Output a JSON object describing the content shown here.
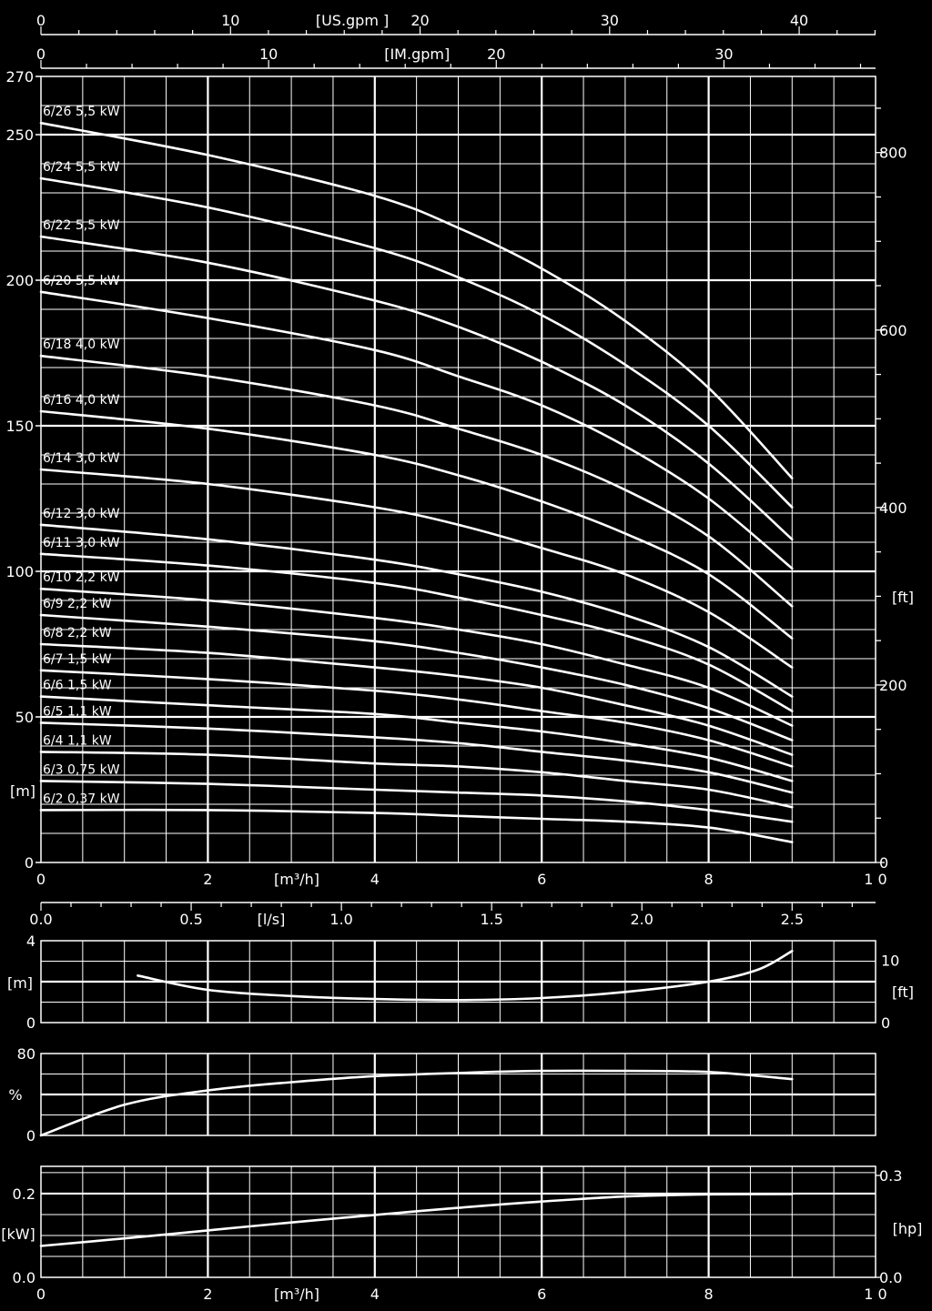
{
  "colors": {
    "background": "#000000",
    "foreground": "#ffffff"
  },
  "chart_data": {
    "type": "line",
    "top_axes": {
      "us_gpm": {
        "label": "[US.gpm ]",
        "ticks": [
          0,
          10,
          20,
          30,
          40
        ],
        "per_m3h": 4.403
      },
      "im_gpm": {
        "label": "[IM.gpm]",
        "ticks": [
          0,
          10,
          20,
          30
        ],
        "per_m3h": 3.666
      }
    },
    "head_chart": {
      "xlabel": "[m³/h]",
      "xticks": [
        0,
        2,
        4,
        6,
        8,
        10
      ],
      "xtick_labels": [
        "0",
        "2",
        "4",
        "6",
        "8",
        "1 0"
      ],
      "xlim": [
        0,
        10
      ],
      "ylabel": "[m]",
      "ylim": [
        0,
        270
      ],
      "yticks": [
        0,
        50,
        100,
        150,
        200,
        250,
        270
      ],
      "y2label": "[ft]",
      "y2ticks": [
        0,
        200,
        400,
        600,
        800
      ],
      "grid": true,
      "series": [
        {
          "name": "6/26 5,5 kW",
          "x": [
            0,
            2,
            4,
            5,
            6,
            7,
            8,
            9
          ],
          "y": [
            254,
            243,
            229,
            218,
            204,
            186,
            163,
            132
          ]
        },
        {
          "name": "6/24 5,5 kW",
          "x": [
            0,
            2,
            4,
            5,
            6,
            7,
            8,
            9
          ],
          "y": [
            235,
            225,
            211,
            201,
            188,
            171,
            150,
            122
          ]
        },
        {
          "name": "6/22 5,5 kW",
          "x": [
            0,
            2,
            4,
            5,
            6,
            7,
            8,
            9
          ],
          "y": [
            215,
            206,
            193,
            184,
            172,
            157,
            137,
            111
          ]
        },
        {
          "name": "6/20 5,5 kW",
          "x": [
            0,
            2,
            4,
            5,
            6,
            7,
            8,
            9
          ],
          "y": [
            196,
            187,
            176,
            167,
            157,
            143,
            125,
            101
          ]
        },
        {
          "name": "6/18 4,0 kW",
          "x": [
            0,
            2,
            4,
            5,
            6,
            7,
            8,
            9
          ],
          "y": [
            174,
            167,
            157,
            149,
            140,
            128,
            112,
            88
          ]
        },
        {
          "name": "6/16 4,0 kW",
          "x": [
            0,
            2,
            4,
            5,
            6,
            7,
            8,
            9
          ],
          "y": [
            155,
            149,
            140,
            133,
            124,
            113,
            99,
            77
          ]
        },
        {
          "name": "6/14 3,0 kW",
          "x": [
            0,
            2,
            4,
            5,
            6,
            7,
            8,
            9
          ],
          "y": [
            135,
            130,
            122,
            116,
            108,
            99,
            86,
            67
          ]
        },
        {
          "name": "6/12 3,0 kW",
          "x": [
            0,
            2,
            4,
            5,
            6,
            7,
            8,
            9
          ],
          "y": [
            116,
            111,
            104,
            99,
            93,
            85,
            74,
            57
          ]
        },
        {
          "name": "6/11 3,0 kW",
          "x": [
            0,
            2,
            4,
            5,
            6,
            7,
            8,
            9
          ],
          "y": [
            106,
            102,
            96,
            91,
            85,
            78,
            68,
            52
          ]
        },
        {
          "name": "6/10 2,2 kW",
          "x": [
            0,
            2,
            4,
            5,
            6,
            7,
            8,
            9
          ],
          "y": [
            94,
            90,
            84,
            80,
            75,
            68,
            60,
            47
          ]
        },
        {
          "name": "6/9 2,2 kW",
          "x": [
            0,
            2,
            4,
            5,
            6,
            7,
            8,
            9
          ],
          "y": [
            85,
            81,
            76,
            72,
            67,
            61,
            53,
            42
          ]
        },
        {
          "name": "6/8 2,2 kW",
          "x": [
            0,
            2,
            4,
            5,
            6,
            7,
            8,
            9
          ],
          "y": [
            75,
            72,
            67,
            64,
            60,
            54,
            47,
            37
          ]
        },
        {
          "name": "6/7 1,5 kW",
          "x": [
            0,
            2,
            4,
            5,
            6,
            7,
            8,
            9
          ],
          "y": [
            66,
            63,
            59,
            56,
            52,
            48,
            42,
            33
          ]
        },
        {
          "name": "6/6 1,5 kW",
          "x": [
            0,
            2,
            4,
            5,
            6,
            7,
            8,
            9
          ],
          "y": [
            57,
            54,
            51,
            48,
            45,
            41,
            36,
            28
          ]
        },
        {
          "name": "6/5 1,1 kW",
          "x": [
            0,
            2,
            4,
            5,
            6,
            7,
            8,
            9
          ],
          "y": [
            48,
            46,
            43,
            41,
            38,
            35,
            31,
            24
          ]
        },
        {
          "name": "6/4 1,1 kW",
          "x": [
            0,
            2,
            4,
            5,
            6,
            7,
            8,
            9
          ],
          "y": [
            38,
            37,
            34,
            33,
            31,
            28,
            25,
            19
          ]
        },
        {
          "name": "6/3 0,75 kW",
          "x": [
            0,
            2,
            4,
            5,
            6,
            7,
            8,
            9
          ],
          "y": [
            28,
            27,
            25,
            24,
            23,
            21,
            18,
            14
          ]
        },
        {
          "name": "6/2 0,37 kW",
          "x": [
            0,
            2,
            4,
            5,
            6,
            7,
            8,
            9
          ],
          "y": [
            18,
            18,
            17,
            16,
            15,
            14,
            12,
            7
          ]
        }
      ]
    },
    "ls_axis": {
      "label": "[l/s]",
      "ticks": [
        0.0,
        0.5,
        1.0,
        1.5,
        2.0,
        2.5
      ],
      "tick_labels": [
        "0.0",
        "0.5",
        "1.0",
        "1.5",
        "2.0",
        "2.5"
      ]
    },
    "npsh_chart": {
      "ylabel": "[m]",
      "ylim": [
        0,
        4
      ],
      "yticks": [
        0,
        4
      ],
      "y2label": "[ft]",
      "y2ticks": [
        0,
        10
      ],
      "x": [
        1.16,
        2,
        3,
        4,
        5,
        6,
        7,
        8,
        8.6,
        9
      ],
      "y": [
        2.3,
        1.6,
        1.3,
        1.15,
        1.1,
        1.2,
        1.5,
        2.0,
        2.6,
        3.5
      ]
    },
    "eff_chart": {
      "ylabel": "%",
      "ylim": [
        0,
        80
      ],
      "yticks": [
        0,
        80
      ],
      "x": [
        0,
        1,
        2,
        3,
        4,
        5,
        6,
        7,
        8,
        9
      ],
      "y": [
        0,
        30,
        44,
        52,
        58,
        61,
        63,
        63,
        62,
        55
      ]
    },
    "power_chart": {
      "ylabel": "[kW]",
      "ylim": [
        0,
        0.265
      ],
      "yticks": [
        0.0,
        0.2
      ],
      "ytick_labels": [
        "0.0",
        "0.2"
      ],
      "y2label": "[hp]",
      "y2ticks": [
        0.0,
        0.3
      ],
      "y2tick_labels": [
        "0.0",
        "0.3"
      ],
      "xlabel": "[m³/h]",
      "xticks": [
        0,
        2,
        4,
        6,
        8,
        10
      ],
      "xtick_labels": [
        "0",
        "2",
        "4",
        "6",
        "8",
        "1 0"
      ],
      "x": [
        0,
        1,
        2,
        3,
        4,
        5,
        6,
        7,
        8,
        9
      ],
      "y": [
        0.075,
        0.093,
        0.112,
        0.131,
        0.149,
        0.166,
        0.181,
        0.193,
        0.198,
        0.199
      ]
    }
  }
}
